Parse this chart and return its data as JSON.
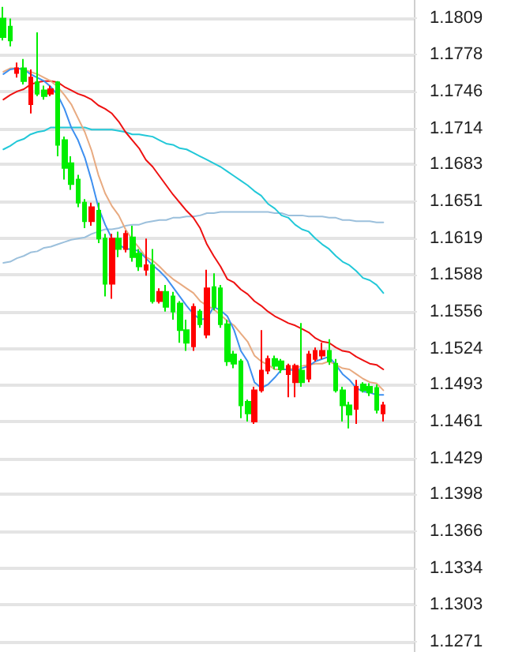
{
  "chart_data": {
    "type": "candlestick",
    "categories": [
      null,
      null,
      null,
      null,
      null,
      null,
      null,
      null,
      null,
      null,
      null,
      null,
      null,
      null,
      null,
      null,
      null,
      null,
      null,
      null,
      null,
      null,
      null,
      null,
      null,
      null,
      null,
      null,
      null,
      null,
      null,
      null,
      null,
      null,
      null,
      null,
      null,
      null,
      null,
      null,
      null,
      null,
      null,
      null,
      null,
      null,
      null,
      null,
      null,
      null,
      null,
      null,
      null,
      null,
      null,
      null,
      null,
      null,
      null,
      null,
      null
    ],
    "ylim": [
      1.1262,
      1.1825
    ],
    "yticks": [
      1.1809,
      1.1778,
      1.1746,
      1.1714,
      1.1683,
      1.1651,
      1.1619,
      1.1588,
      1.1556,
      1.1524,
      1.1493,
      1.1461,
      1.1429,
      1.1398,
      1.1366,
      1.1334,
      1.1303,
      1.1271
    ],
    "grid": "y",
    "line_style": "solid",
    "series": [
      {
        "type": "line",
        "color": "#9cc0dc",
        "values": [
          1.1598,
          1.1599,
          1.1602,
          1.1604,
          1.1607,
          1.1608,
          1.1611,
          1.1612,
          1.1614,
          1.1616,
          1.1618,
          1.1619,
          1.162,
          1.1623,
          1.1625,
          1.1627,
          1.1627,
          1.1628,
          1.163,
          1.1631,
          1.1631,
          1.1633,
          1.1634,
          1.1635,
          1.1635,
          1.1637,
          1.1637,
          1.1638,
          1.1638,
          1.1639,
          1.1641,
          1.1641,
          1.1642,
          1.1642,
          1.1642,
          1.1642,
          1.1642,
          1.1642,
          1.1642,
          1.1642,
          1.1641,
          1.1641,
          1.1639,
          1.1639,
          1.1639,
          1.1638,
          1.1638,
          1.1638,
          1.1637,
          1.1637,
          1.1635,
          1.1635,
          1.1634,
          1.1634,
          1.1634,
          1.1633,
          1.1633,
          null,
          null,
          null,
          null
        ]
      },
      {
        "type": "line",
        "color": "#22c8d8",
        "values": [
          1.1696,
          1.1699,
          1.1703,
          1.1705,
          1.1709,
          1.1711,
          1.1712,
          1.1715,
          1.1715,
          1.1715,
          1.1715,
          1.1715,
          1.1715,
          1.1713,
          1.1713,
          1.1713,
          1.1713,
          1.1712,
          1.1711,
          1.1709,
          1.1709,
          1.1708,
          1.1707,
          1.1704,
          1.1701,
          1.17,
          1.1697,
          1.1696,
          1.1693,
          1.169,
          1.1687,
          1.1684,
          1.1681,
          1.1677,
          1.1673,
          1.1669,
          1.1665,
          1.166,
          1.1656,
          1.1649,
          1.1645,
          1.1639,
          1.1637,
          1.1631,
          1.1627,
          1.1625,
          1.1619,
          1.1614,
          1.161,
          1.1604,
          1.1599,
          1.1596,
          1.1591,
          1.1585,
          1.1583,
          1.1579,
          1.1572,
          null,
          null,
          null,
          null
        ]
      },
      {
        "type": "line",
        "color": "#ee1111",
        "values": [
          1.1739,
          1.1743,
          1.1746,
          1.1748,
          1.1752,
          1.1754,
          1.1755,
          1.1755,
          1.1754,
          1.175,
          1.1747,
          1.1744,
          1.1742,
          1.1739,
          1.1734,
          1.1731,
          1.1727,
          1.172,
          1.1711,
          1.1704,
          1.1697,
          1.1687,
          1.1681,
          1.1673,
          1.1665,
          1.1657,
          1.165,
          1.1643,
          1.1637,
          1.1628,
          1.1614,
          1.1604,
          1.1595,
          1.1584,
          1.1581,
          1.1575,
          1.1571,
          1.1565,
          1.1561,
          1.1556,
          1.1552,
          1.1549,
          1.1546,
          1.1544,
          1.1541,
          1.1538,
          1.1533,
          1.153,
          1.1529,
          1.1525,
          1.1522,
          1.1521,
          1.1517,
          1.1514,
          1.1511,
          1.151,
          1.1506,
          null,
          null,
          null,
          null
        ]
      },
      {
        "type": "line",
        "color": "#e8aa80",
        "values": [
          1.1763,
          1.1766,
          1.1766,
          1.1765,
          1.1763,
          1.1761,
          1.1758,
          1.1755,
          1.175,
          1.1743,
          1.1735,
          1.1723,
          1.1711,
          1.1695,
          1.1674,
          1.1658,
          1.1647,
          1.1639,
          1.1627,
          1.1618,
          1.1611,
          1.1603,
          1.16,
          1.1595,
          1.1589,
          1.1584,
          1.158,
          1.1576,
          1.1572,
          1.1565,
          1.1561,
          1.1558,
          1.1553,
          1.1548,
          1.1544,
          1.1537,
          1.153,
          1.1518,
          1.1513,
          1.151,
          1.1506,
          1.1506,
          1.1506,
          1.1507,
          1.1509,
          1.151,
          1.1511,
          1.1511,
          1.1513,
          1.151,
          1.1507,
          1.1506,
          1.1502,
          1.1498,
          1.1495,
          1.1494,
          1.1488,
          null,
          null,
          null,
          null
        ]
      },
      {
        "type": "line",
        "color": "#3d8ff0",
        "values": [
          1.1761,
          1.1765,
          1.1766,
          1.1765,
          1.1761,
          1.1758,
          1.1755,
          1.175,
          1.1743,
          1.1731,
          1.1715,
          1.1704,
          1.1689,
          1.1669,
          1.1646,
          1.1631,
          1.1619,
          1.1614,
          1.161,
          1.161,
          1.1608,
          1.1602,
          1.1596,
          1.1591,
          1.1585,
          1.1577,
          1.1569,
          1.1561,
          1.1554,
          1.1549,
          1.155,
          1.156,
          1.1557,
          1.1552,
          1.154,
          1.1522,
          1.1513,
          1.1495,
          1.149,
          1.1493,
          1.1499,
          1.1506,
          1.1506,
          1.1505,
          1.1507,
          1.1509,
          1.1513,
          1.1515,
          1.1517,
          1.151,
          1.1502,
          1.1497,
          1.149,
          1.1487,
          1.1486,
          1.1484,
          1.1484,
          null,
          null,
          null,
          null
        ]
      },
      {
        "ohlc": [
          [
            1.1809,
            1.1819,
            1.179,
            1.1793
          ],
          [
            1.1802,
            1.1809,
            1.1785,
            1.179
          ],
          [
            1.1762,
            1.1771,
            1.1758,
            1.1766
          ],
          [
            1.1766,
            1.1774,
            1.1752,
            1.1755
          ],
          [
            1.1735,
            1.1765,
            1.1727,
            1.1758
          ],
          [
            1.1754,
            1.1797,
            1.1742,
            1.1744
          ],
          [
            1.1747,
            1.1751,
            1.1739,
            1.1742
          ],
          [
            1.1744,
            1.1751,
            1.1742,
            1.1748
          ],
          [
            1.1754,
            1.1755,
            1.169,
            1.17
          ],
          [
            1.1704,
            1.1707,
            1.167,
            1.168
          ],
          [
            1.1684,
            1.169,
            1.1661,
            1.1666
          ],
          [
            1.167,
            1.1674,
            1.1646,
            1.165
          ],
          [
            1.165,
            1.1653,
            1.1628,
            1.1634
          ],
          [
            1.1634,
            1.165,
            1.163,
            1.1646
          ],
          [
            1.1643,
            1.165,
            1.1615,
            1.1619
          ],
          [
            1.1619,
            1.1623,
            1.1569,
            1.158
          ],
          [
            1.158,
            1.1623,
            1.1567,
            1.1619
          ],
          [
            1.1619,
            1.1625,
            1.1603,
            1.161
          ],
          [
            1.161,
            1.1626,
            1.1607,
            1.1623
          ],
          [
            1.162,
            1.163,
            1.1599,
            1.1603
          ],
          [
            1.1606,
            1.161,
            1.1591,
            1.1595
          ],
          [
            1.1592,
            1.1619,
            1.1587,
            1.1596
          ],
          [
            1.1596,
            1.161,
            1.1563,
            1.1565
          ],
          [
            1.1565,
            1.1576,
            1.1563,
            1.1573
          ],
          [
            1.1573,
            1.1579,
            1.1556,
            1.156
          ],
          [
            1.1569,
            1.1573,
            1.1549,
            1.1556
          ],
          [
            1.1563,
            1.1565,
            1.1529,
            1.154
          ],
          [
            1.154,
            1.1549,
            1.1522,
            1.1529
          ],
          [
            1.1526,
            1.1563,
            1.1522,
            1.156
          ],
          [
            1.1556,
            1.1558,
            1.1542,
            1.1545
          ],
          [
            1.1536,
            1.1592,
            1.1533,
            1.1576
          ],
          [
            1.1577,
            1.1589,
            1.1557,
            1.156
          ],
          [
            1.1576,
            1.1579,
            1.1542,
            1.1545
          ],
          [
            1.1545,
            1.1549,
            1.1509,
            1.1513
          ],
          [
            1.1519,
            1.1522,
            1.1507,
            1.1511
          ],
          [
            1.1513,
            1.1515,
            1.1464,
            1.1475
          ],
          [
            1.1478,
            1.148,
            1.1461,
            1.1468
          ],
          [
            1.1461,
            1.1491,
            1.1459,
            1.1488
          ],
          [
            1.1488,
            1.154,
            1.1486,
            1.1505
          ],
          [
            1.1505,
            1.1518,
            1.1502,
            1.1515
          ],
          [
            1.1515,
            1.1518,
            1.1506,
            1.1509
          ],
          [
            1.1513,
            1.1515,
            1.1503,
            1.1506
          ],
          [
            1.1502,
            1.1511,
            1.1482,
            1.1509
          ],
          [
            1.1495,
            1.1511,
            1.1482,
            1.1509
          ],
          [
            1.1505,
            1.1546,
            1.1491,
            1.1495
          ],
          [
            1.1498,
            1.1522,
            1.1495,
            1.1519
          ],
          [
            1.1515,
            1.1525,
            1.1513,
            1.1522
          ],
          [
            1.1518,
            1.1529,
            1.1515,
            1.1522
          ],
          [
            1.1522,
            1.1532,
            1.151,
            1.1513
          ],
          [
            1.1511,
            1.1515,
            1.1486,
            1.1488
          ],
          [
            1.1488,
            1.1491,
            1.1461,
            1.1475
          ],
          [
            1.1475,
            1.1478,
            1.1455,
            1.1467
          ],
          [
            1.1472,
            1.1497,
            1.1459,
            1.1491
          ],
          [
            1.1493,
            1.1495,
            1.1486,
            1.1488
          ],
          [
            1.1491,
            1.1494,
            1.1483,
            1.1486
          ],
          [
            1.149,
            1.1493,
            1.1468,
            1.1471
          ],
          [
            1.1468,
            1.1478,
            1.1461,
            1.1475
          ],
          null,
          null,
          null,
          null
        ],
        "colors": [
          "#00ee00",
          "#00ee00",
          "#ff0000",
          "#00ee00",
          "#ff0000",
          "#00ee00",
          "#00ee00",
          "#ff0000",
          "#00ee00",
          "#00ee00",
          "#00ee00",
          "#00ee00",
          "#00ee00",
          "#ff0000",
          "#00ee00",
          "#00ee00",
          "#ff0000",
          "#00ee00",
          "#ff0000",
          "#00ee00",
          "#00ee00",
          "#ff0000",
          "#00ee00",
          "#ff0000",
          "#00ee00",
          "#00ee00",
          "#00ee00",
          "#00ee00",
          "#ff0000",
          "#00ee00",
          "#ff0000",
          "#00ee00",
          "#00ee00",
          "#00ee00",
          "#00ee00",
          "#00ee00",
          "#00ee00",
          "#ff0000",
          "#ff0000",
          "#ff0000",
          "#00ee00",
          "#00ee00",
          "#ff0000",
          "#ff0000",
          "#00ee00",
          "#ff0000",
          "#ff0000",
          "#ff0000",
          "#00ee00",
          "#00ee00",
          "#00ee00",
          "#00ee00",
          "#ff0000",
          "#00ee00",
          "#00ee00",
          "#00ee00",
          "#ff0000",
          null,
          null,
          null,
          null
        ]
      }
    ]
  }
}
